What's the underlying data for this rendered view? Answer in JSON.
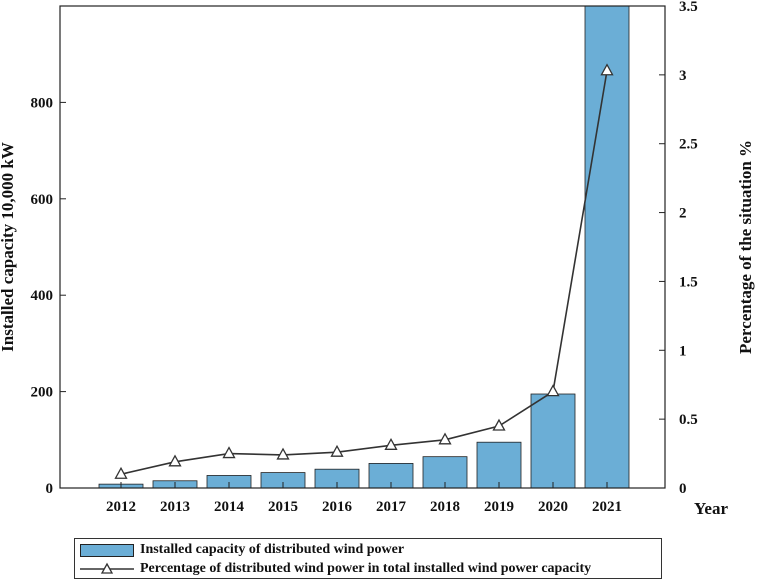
{
  "chart_data": {
    "type": "bar+line",
    "categories": [
      "2012",
      "2013",
      "2014",
      "2015",
      "2016",
      "2017",
      "2018",
      "2019",
      "2020",
      "2021"
    ],
    "x_axis_label": "Year",
    "left_axis": {
      "label": "Installed capacity  10,000 kW",
      "ylim": [
        0,
        1000
      ],
      "ticks": [
        "0",
        "200",
        "400",
        "600",
        "800"
      ]
    },
    "right_axis": {
      "label": "Percentage of the situation  %",
      "ylim": [
        0,
        3.5
      ],
      "ticks": [
        "0",
        "0.5",
        "1",
        "1.5",
        "2",
        "2.5",
        "3",
        "3.5"
      ]
    },
    "series": [
      {
        "name": "Installed capacity of distributed wind power",
        "type": "bar",
        "axis": "left",
        "color": "#6baed6",
        "values": [
          8,
          15,
          26,
          32,
          39,
          51,
          65,
          95,
          195,
          1000
        ]
      },
      {
        "name": "Percentage of distributed wind power in total installed wind power capacity",
        "type": "line",
        "axis": "right",
        "marker": "triangle",
        "color": "#333333",
        "values": [
          0.1,
          0.19,
          0.25,
          0.24,
          0.26,
          0.31,
          0.35,
          0.45,
          0.7,
          3.03
        ]
      }
    ],
    "grid": false,
    "legend_position": "bottom"
  }
}
